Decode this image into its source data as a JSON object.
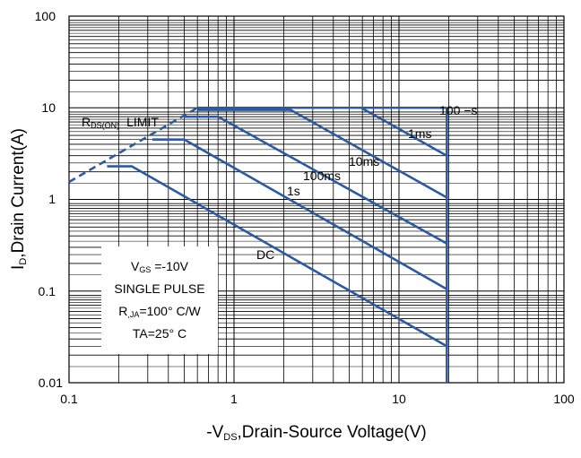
{
  "chart_data": {
    "type": "line",
    "x_scale": "log",
    "y_scale": "log",
    "xlim": [
      0.1,
      100
    ],
    "ylim": [
      0.01,
      100
    ],
    "grid": true,
    "x_tick_labels": [
      "0.1",
      "1",
      "10",
      "100"
    ],
    "y_tick_labels": [
      "0.01",
      "0.1",
      "1",
      "10",
      "100"
    ],
    "xlabel": {
      "prefix": "-V",
      "sub": "DS",
      "rest": ",Drain-Source Voltage(V)"
    },
    "ylabel": {
      "prefix": "I",
      "sub": "D",
      "rest": ",Drain Current(A)"
    },
    "series_color": "#2c5aa0",
    "series": [
      {
        "name": "100 µs",
        "points": [
          [
            0.6,
            10
          ],
          [
            19.5,
            10
          ]
        ]
      },
      {
        "name": "1ms",
        "points": [
          [
            2.0,
            10
          ],
          [
            5.9,
            10
          ],
          [
            19.5,
            3.0
          ]
        ]
      },
      {
        "name": "10ms",
        "points": [
          [
            0.6,
            9.5
          ],
          [
            2.2,
            9.5
          ],
          [
            19.5,
            1.05
          ]
        ]
      },
      {
        "name": "100ms",
        "points": [
          [
            0.5,
            8.0
          ],
          [
            0.8,
            8.0
          ],
          [
            19.5,
            0.33
          ]
        ]
      },
      {
        "name": "1s",
        "points": [
          [
            0.32,
            4.5
          ],
          [
            0.5,
            4.5
          ],
          [
            19.5,
            0.105
          ]
        ]
      },
      {
        "name": "DC",
        "points": [
          [
            0.17,
            2.3
          ],
          [
            0.24,
            2.3
          ],
          [
            19.5,
            0.025
          ]
        ]
      }
    ],
    "vertical_limit": {
      "x": 19.5,
      "y_from": 0.01,
      "y_to": 10
    },
    "rds_limit": {
      "label_main": "R",
      "label_sub": "DS(ON)",
      "label_rest": "LIMIT",
      "points": [
        [
          0.1,
          1.55
        ],
        [
          0.6,
          10
        ]
      ]
    },
    "annotations": {
      "100us": "100 −s",
      "1ms": "1ms",
      "10ms": "10ms",
      "100ms": "100ms",
      "1s": "1s",
      "DC": "DC"
    },
    "info_box": {
      "vgs_main": "V",
      "vgs_sub": "GS",
      "vgs_rest": " =-10V",
      "pulse": "SINGLE PULSE",
      "r_main": "R",
      "r_sub": ",JA",
      "r_rest": "=100° C/W",
      "ta": "TA=25° C"
    }
  }
}
